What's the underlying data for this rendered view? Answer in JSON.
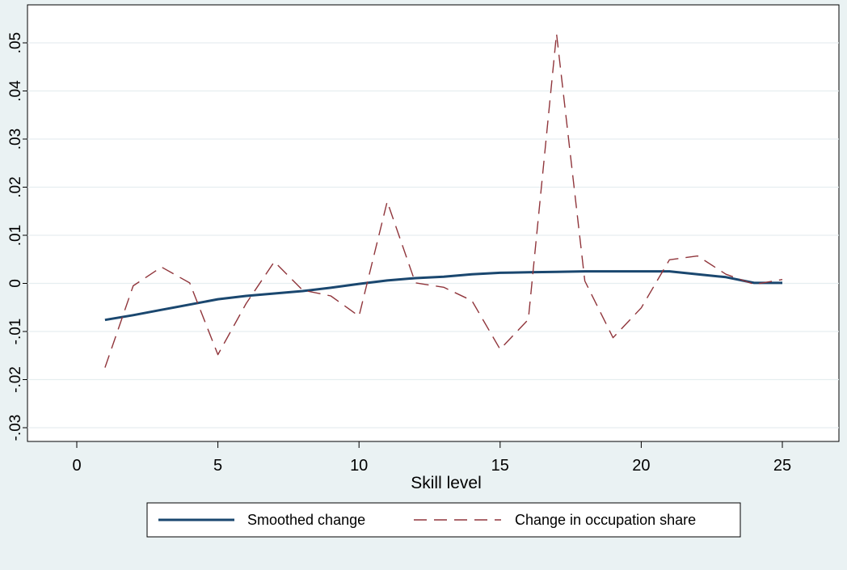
{
  "chart_data": {
    "type": "line",
    "xlabel": "Skill level",
    "ylabel": "",
    "xlim": [
      0,
      25
    ],
    "ylim": [
      -0.03,
      0.05
    ],
    "x_ticks": [
      {
        "value": 0,
        "label": "0"
      },
      {
        "value": 5,
        "label": "5"
      },
      {
        "value": 10,
        "label": "10"
      },
      {
        "value": 15,
        "label": "15"
      },
      {
        "value": 20,
        "label": "20"
      },
      {
        "value": 25,
        "label": "25"
      }
    ],
    "y_ticks": [
      {
        "value": -0.03,
        "label": "-.03"
      },
      {
        "value": -0.02,
        "label": "-.02"
      },
      {
        "value": -0.01,
        "label": "-.01"
      },
      {
        "value": 0,
        "label": "0"
      },
      {
        "value": 0.01,
        "label": ".01"
      },
      {
        "value": 0.02,
        "label": ".02"
      },
      {
        "value": 0.03,
        "label": ".03"
      },
      {
        "value": 0.04,
        "label": ".04"
      },
      {
        "value": 0.05,
        "label": ".05"
      }
    ],
    "grid": "horizontal",
    "legend_position": "bottom",
    "series": [
      {
        "name": "Smoothed change",
        "style": "solid",
        "color": "#1a476f",
        "x": [
          1,
          2,
          3,
          4,
          5,
          6,
          7,
          8,
          9,
          10,
          11,
          12,
          13,
          14,
          15,
          16,
          17,
          18,
          19,
          20,
          21,
          22,
          23,
          24,
          25
        ],
        "values": [
          -0.0076,
          -0.0066,
          -0.0055,
          -0.0044,
          -0.0033,
          -0.0026,
          -0.0021,
          -0.0016,
          -0.0009,
          -0.0001,
          0.0006,
          0.0011,
          0.0014,
          0.0019,
          0.0022,
          0.0023,
          0.0024,
          0.0025,
          0.0025,
          0.0025,
          0.0025,
          0.0019,
          0.0013,
          0.0001,
          0.0001
        ]
      },
      {
        "name": "Change in occupation share",
        "style": "dashed",
        "color": "#90353b",
        "x": [
          1,
          2,
          3,
          4,
          5,
          6,
          7,
          8,
          9,
          10,
          11,
          12,
          13,
          14,
          15,
          16,
          17,
          18,
          19,
          20,
          21,
          22,
          23,
          24,
          25
        ],
        "values": [
          -0.0175,
          -0.0005,
          0.0034,
          0.0001,
          -0.0148,
          -0.0042,
          0.0045,
          -0.0014,
          -0.0026,
          -0.0068,
          0.017,
          0.0001,
          -0.0008,
          -0.0036,
          -0.0137,
          -0.0075,
          0.0519,
          0.0005,
          -0.0113,
          -0.0051,
          0.0049,
          0.0057,
          0.0019,
          -0.0002,
          0.0008
        ]
      }
    ]
  }
}
